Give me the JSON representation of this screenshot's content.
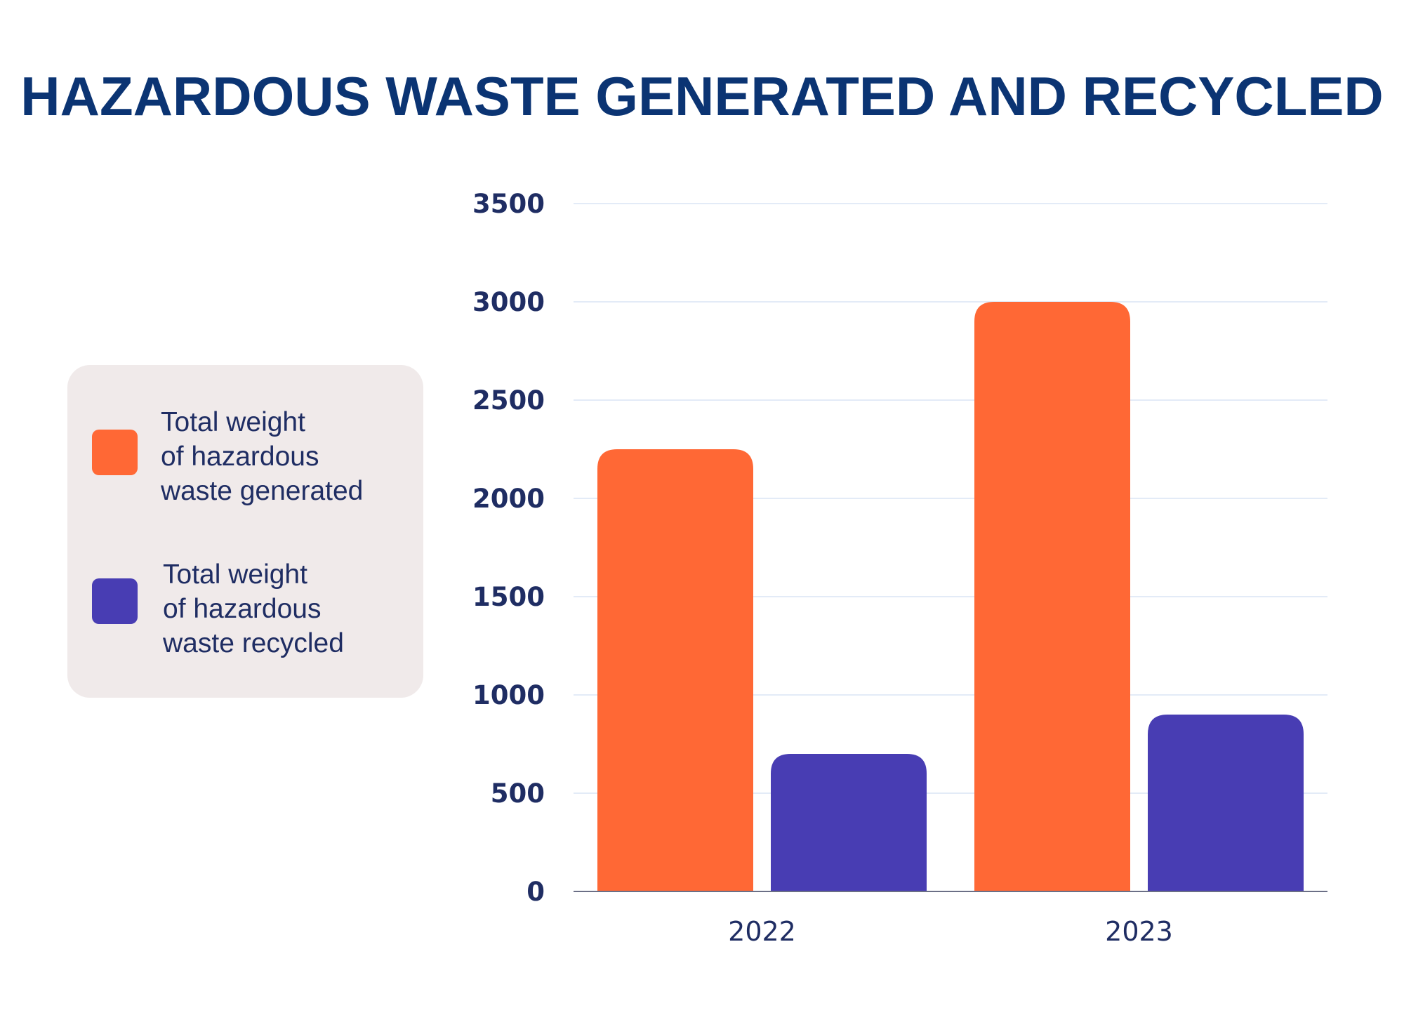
{
  "chart_data": {
    "type": "bar",
    "title": "HAZARDOUS WASTE GENERATED AND RECYCLED",
    "xlabel": "",
    "ylabel": "",
    "categories": [
      "2022",
      "2023"
    ],
    "series": [
      {
        "name": "Total weight of hazardous waste generated",
        "name_lines": [
          "Total weight",
          "of hazardous",
          "waste generated"
        ],
        "color": "#FF6835",
        "values": [
          2250,
          3000
        ]
      },
      {
        "name": "Total weight of hazardous waste recycled",
        "name_lines": [
          "Total weight",
          "of hazardous",
          "waste recycled"
        ],
        "color": "#483DB3",
        "values": [
          700,
          900
        ]
      }
    ],
    "ylim": [
      0,
      3500
    ],
    "yticks": [
      "0",
      "500",
      "1000",
      "1500",
      "2000",
      "2500",
      "3000",
      "3500"
    ],
    "grid": true,
    "legend_position": "left"
  }
}
